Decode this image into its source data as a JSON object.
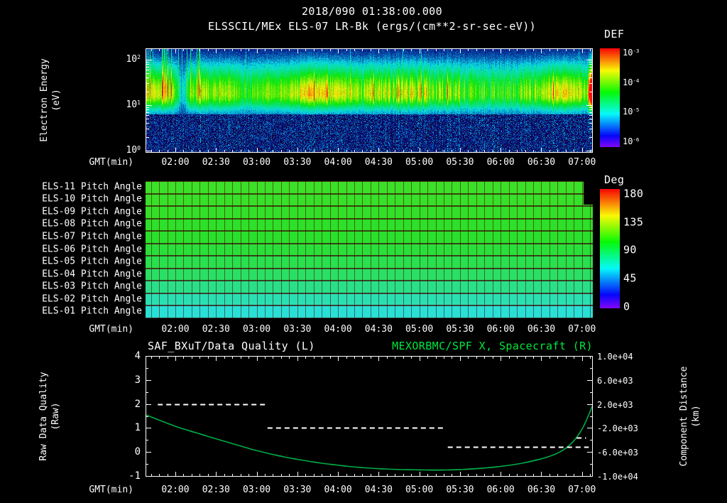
{
  "header": {
    "title": "2018/090 01:38:00.000"
  },
  "time_axis": {
    "label": "GMT(min)",
    "ticks": [
      "02:00",
      "02:30",
      "03:00",
      "03:30",
      "04:00",
      "04:30",
      "05:00",
      "05:30",
      "06:00",
      "06:30",
      "07:00"
    ]
  },
  "spectrogram": {
    "title": "ELSSCIL/MEx ELS-07 LR-Bk (ergs/(cm**2-sr-sec-eV))",
    "ylabel1": "Electron Energy",
    "ylabel2": "(eV)",
    "yticks": [
      "10^2",
      "10^1",
      "10^0"
    ],
    "colorbar": {
      "label": "DEF",
      "ticks": [
        "10^-3",
        "10^-4",
        "10^-5",
        "10^-6"
      ]
    }
  },
  "pitch_panel": {
    "colorbar": {
      "label": "Deg",
      "ticks": [
        "180",
        "135",
        "90",
        "45",
        "0"
      ]
    }
  },
  "lineplot": {
    "left_title": "SAF_BXuT/Data Quality (L)",
    "right_title": "MEXORBMC/SPF X, Spacecraft (R)",
    "left_ylabel1": "Raw Data Quality",
    "left_ylabel2": "(Raw)",
    "right_ylabel1": "Component Distance",
    "right_ylabel2": "(km)",
    "left_ticks": [
      "4",
      "3",
      "2",
      "1",
      "0",
      "-1"
    ],
    "right_ticks": [
      "1.0e+04",
      "6.0e+03",
      "2.0e+03",
      "-2.0e+03",
      "-6.0e+03",
      "-1.0e+04"
    ]
  },
  "colors": {
    "background": "#000000",
    "text": "#ffffff",
    "right_title_green": "#00e83c",
    "curve_green": "#00ac46",
    "grid_dark_red": "#500000"
  },
  "chart_data": [
    {
      "type": "heatmap",
      "name": "electron-energy-spectrogram",
      "title": "ELSSCIL/MEx ELS-07 LR-Bk",
      "units": "ergs/(cm**2-sr-sec-eV)",
      "x_start_gmt": "01:38",
      "x_end_gmt": "07:08",
      "ylabel": "Electron Energy (eV)",
      "y_scale": "log",
      "y_range_eV": [
        1,
        178
      ],
      "color_scale_log10": [
        -6,
        -3
      ],
      "band_center_eV": 18,
      "band_range_eV": [
        7,
        60
      ],
      "enhancements_gmt": [
        [
          "03:20",
          "04:10"
        ],
        [
          "06:30",
          "07:05"
        ]
      ],
      "hot_edge_gmt": "07:07",
      "data_gap_gmt": "02:05"
    },
    {
      "type": "heatmap",
      "name": "pitch-angle-panels",
      "ylabel": "Pitch Angle (Deg)",
      "color_range_deg": [
        0,
        180
      ],
      "rows": [
        {
          "label": "ELS-11 Pitch Angle",
          "deg": 104
        },
        {
          "label": "ELS-10 Pitch Angle",
          "deg": 103
        },
        {
          "label": "ELS-09 Pitch Angle",
          "deg": 102
        },
        {
          "label": "ELS-08 Pitch Angle",
          "deg": 101
        },
        {
          "label": "ELS-07 Pitch Angle",
          "deg": 99
        },
        {
          "label": "ELS-06 Pitch Angle",
          "deg": 96
        },
        {
          "label": "ELS-05 Pitch Angle",
          "deg": 92
        },
        {
          "label": "ELS-04 Pitch Angle",
          "deg": 87
        },
        {
          "label": "ELS-03 Pitch Angle",
          "deg": 79
        },
        {
          "label": "ELS-02 Pitch Angle",
          "deg": 70
        },
        {
          "label": "ELS-01 Pitch Angle",
          "deg": 62
        }
      ]
    },
    {
      "type": "line",
      "name": "quality-and-spacecraft-x",
      "left_axis": {
        "label": "Raw Data Quality (Raw)",
        "range": [
          -1,
          4
        ]
      },
      "right_axis": {
        "label": "Component Distance (km)",
        "range": [
          -10000,
          10000
        ]
      },
      "series": [
        {
          "name": "SAF_BXuT/Data Quality (L)",
          "axis": "left",
          "style": "dashed",
          "color": "#ffffff",
          "segments": [
            {
              "gmt": [
                "01:47",
                "03:08"
              ],
              "value": 2.0
            },
            {
              "gmt": [
                "03:08",
                "05:20"
              ],
              "value": 1.0
            },
            {
              "gmt": [
                "05:21",
                "07:05"
              ],
              "value": 0.2
            },
            {
              "gmt": [
                "06:56",
                "07:03"
              ],
              "value": 0.6
            }
          ]
        },
        {
          "name": "MEXORBMC/SPF X, Spacecraft (R)",
          "axis": "right",
          "style": "solid",
          "color": "#00ac46",
          "gmt_hours": [
            1.633,
            2.0,
            2.333,
            2.667,
            3.0,
            3.333,
            3.667,
            4.0,
            4.333,
            4.667,
            5.0,
            5.333,
            5.667,
            6.0,
            6.333,
            6.667,
            6.867,
            7.0,
            7.083,
            7.133
          ],
          "km": [
            200,
            -1720,
            -3120,
            -4480,
            -5760,
            -6800,
            -7600,
            -8200,
            -8640,
            -8880,
            -8980,
            -9000,
            -8800,
            -8400,
            -7680,
            -6400,
            -4600,
            -2200,
            200,
            1880
          ]
        }
      ]
    }
  ]
}
